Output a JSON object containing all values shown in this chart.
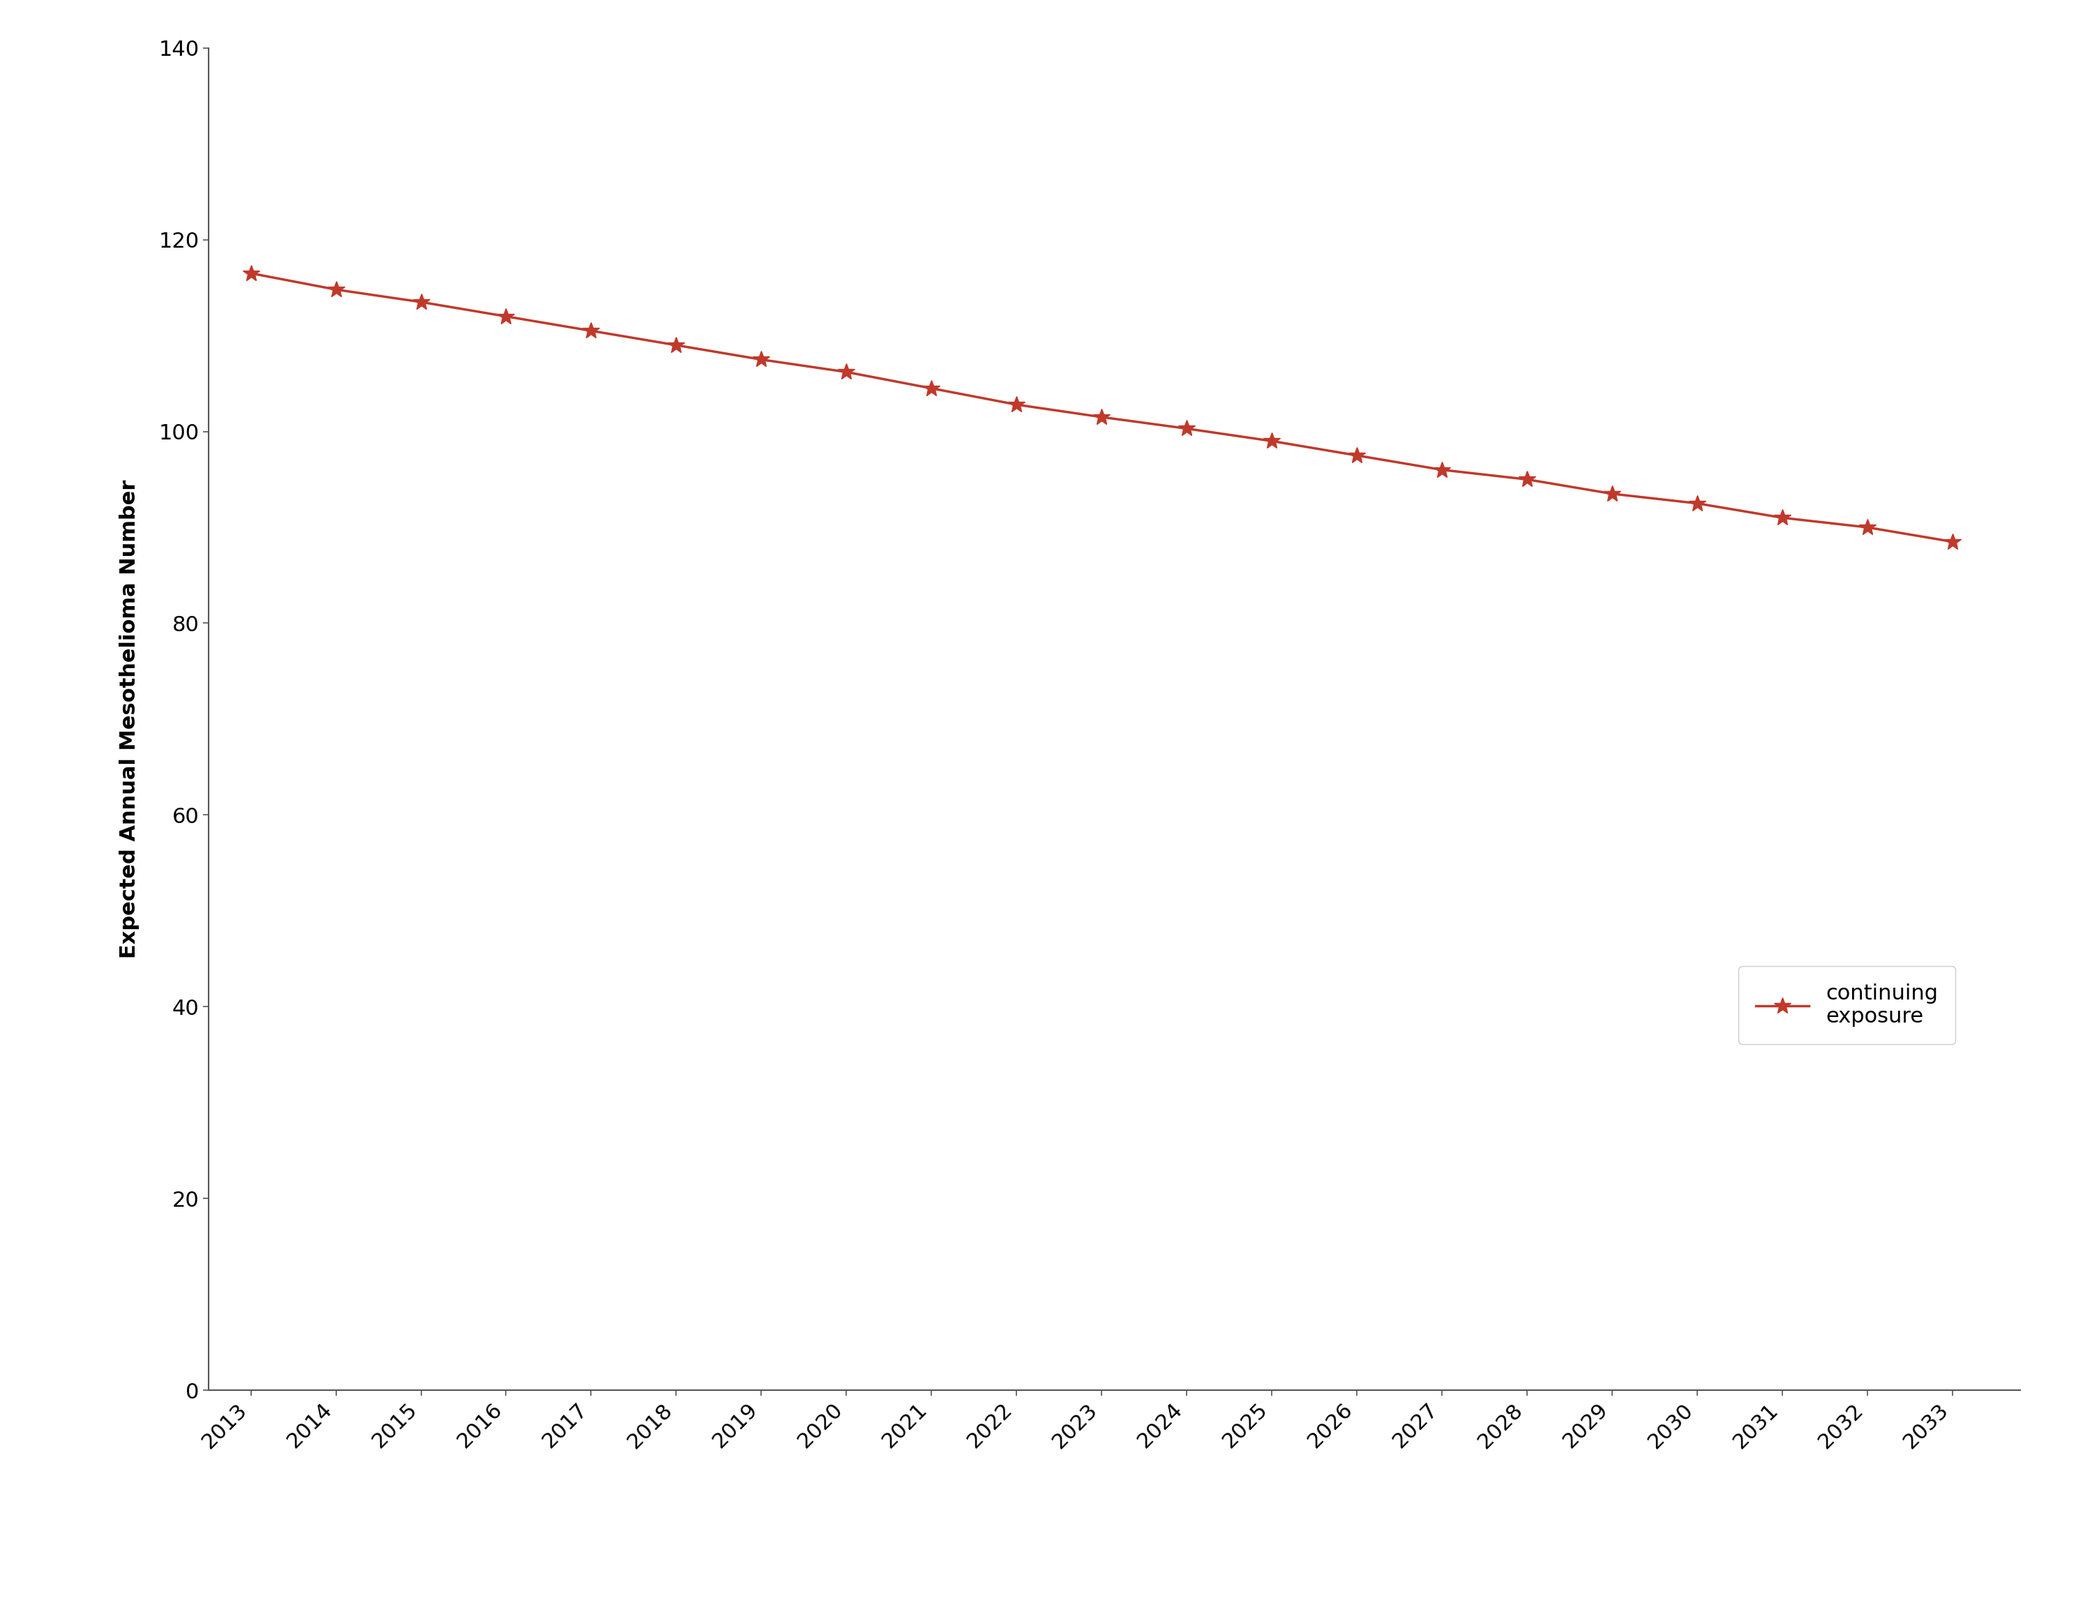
{
  "years": [
    2013,
    2014,
    2015,
    2016,
    2017,
    2018,
    2019,
    2020,
    2021,
    2022,
    2023,
    2024,
    2025,
    2026,
    2027,
    2028,
    2029,
    2030,
    2031,
    2032,
    2033
  ],
  "values": [
    116.5,
    114.8,
    113.5,
    112.0,
    110.5,
    109.0,
    107.5,
    106.2,
    104.5,
    102.8,
    101.5,
    100.3,
    99.0,
    97.5,
    96.0,
    95.0,
    93.5,
    92.5,
    91.0,
    90.0,
    88.5
  ],
  "line_color": "#c0392b",
  "marker": "*",
  "marker_size": 18,
  "line_width": 2.5,
  "ylabel": "Expected Annual Mesothelioma Number",
  "ylim": [
    0,
    140
  ],
  "yticks": [
    0,
    20,
    40,
    60,
    80,
    100,
    120,
    140
  ],
  "xlim": [
    2012.5,
    2033.8
  ],
  "legend_label": "continuing\nexposure",
  "background_color": "#ffffff",
  "tick_label_fontsize": 22,
  "ylabel_fontsize": 22,
  "legend_fontsize": 22,
  "spine_color": "#555555"
}
